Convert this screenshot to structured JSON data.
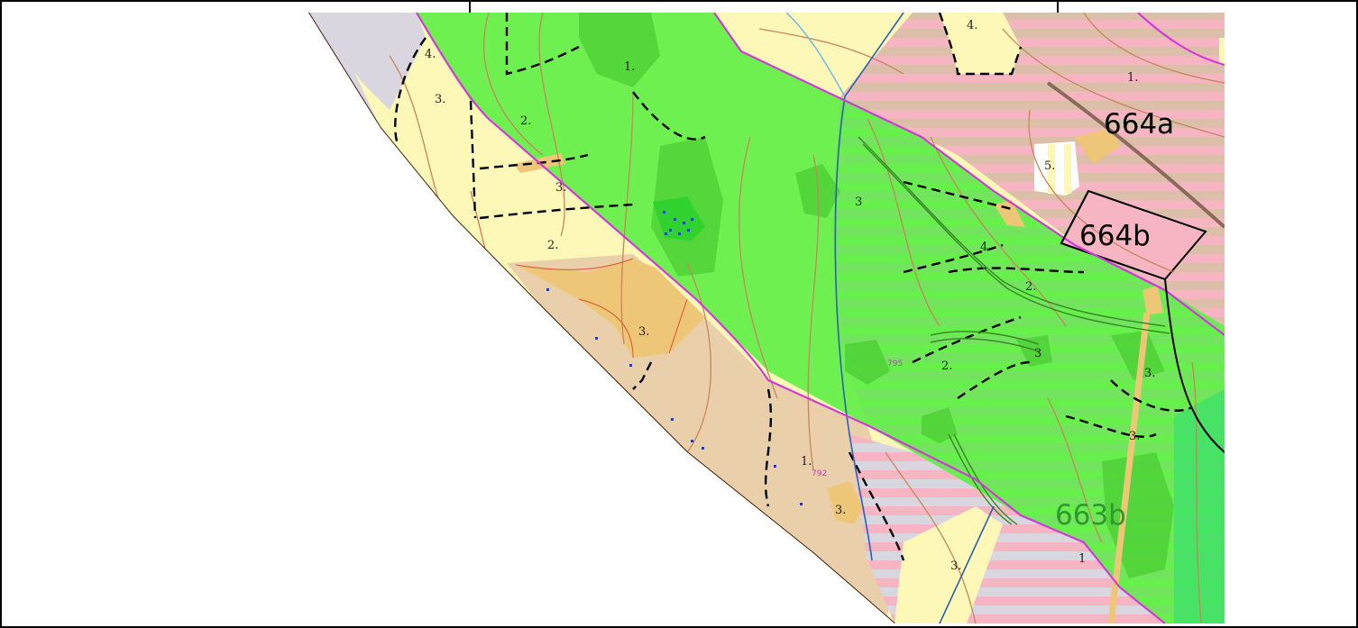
{
  "colors": {
    "grey": "#d9d6df",
    "yellow": "#fdf7b8",
    "tan": "#e9cfaa",
    "orange": "#edc678",
    "pink": "#f7b5c4",
    "green": "#66f04a",
    "darkgreen": "#4fd136",
    "boundary": "#d23ad8",
    "contour": "#c8855a"
  },
  "labels": {
    "compartment_664a": "664a",
    "compartment_664b": "664b",
    "compartment_663b": "663b",
    "sub_1_top": "1.",
    "sub_1_right": "1.",
    "sub_1_bottom": "1.",
    "sub_1_bottom_right": "1",
    "sub_2_left": "2.",
    "sub_2_mid": "2.",
    "sub_2_right": "2.",
    "sub_2_green": "2.",
    "sub_3_left_top": "3.",
    "sub_3_left": "3.",
    "sub_3_tan": "3.",
    "sub_3_green_a": "3",
    "sub_3_green_b": "3",
    "sub_3_green_c": "3.",
    "sub_3_green_d": "3.",
    "sub_3_bottom": "3.",
    "sub_3_small": "3.",
    "sub_4_top": "4.",
    "sub_4_left": "4.",
    "sub_4_green": "4.",
    "sub_5": "5.",
    "point_795": "795",
    "point_792": "792"
  }
}
